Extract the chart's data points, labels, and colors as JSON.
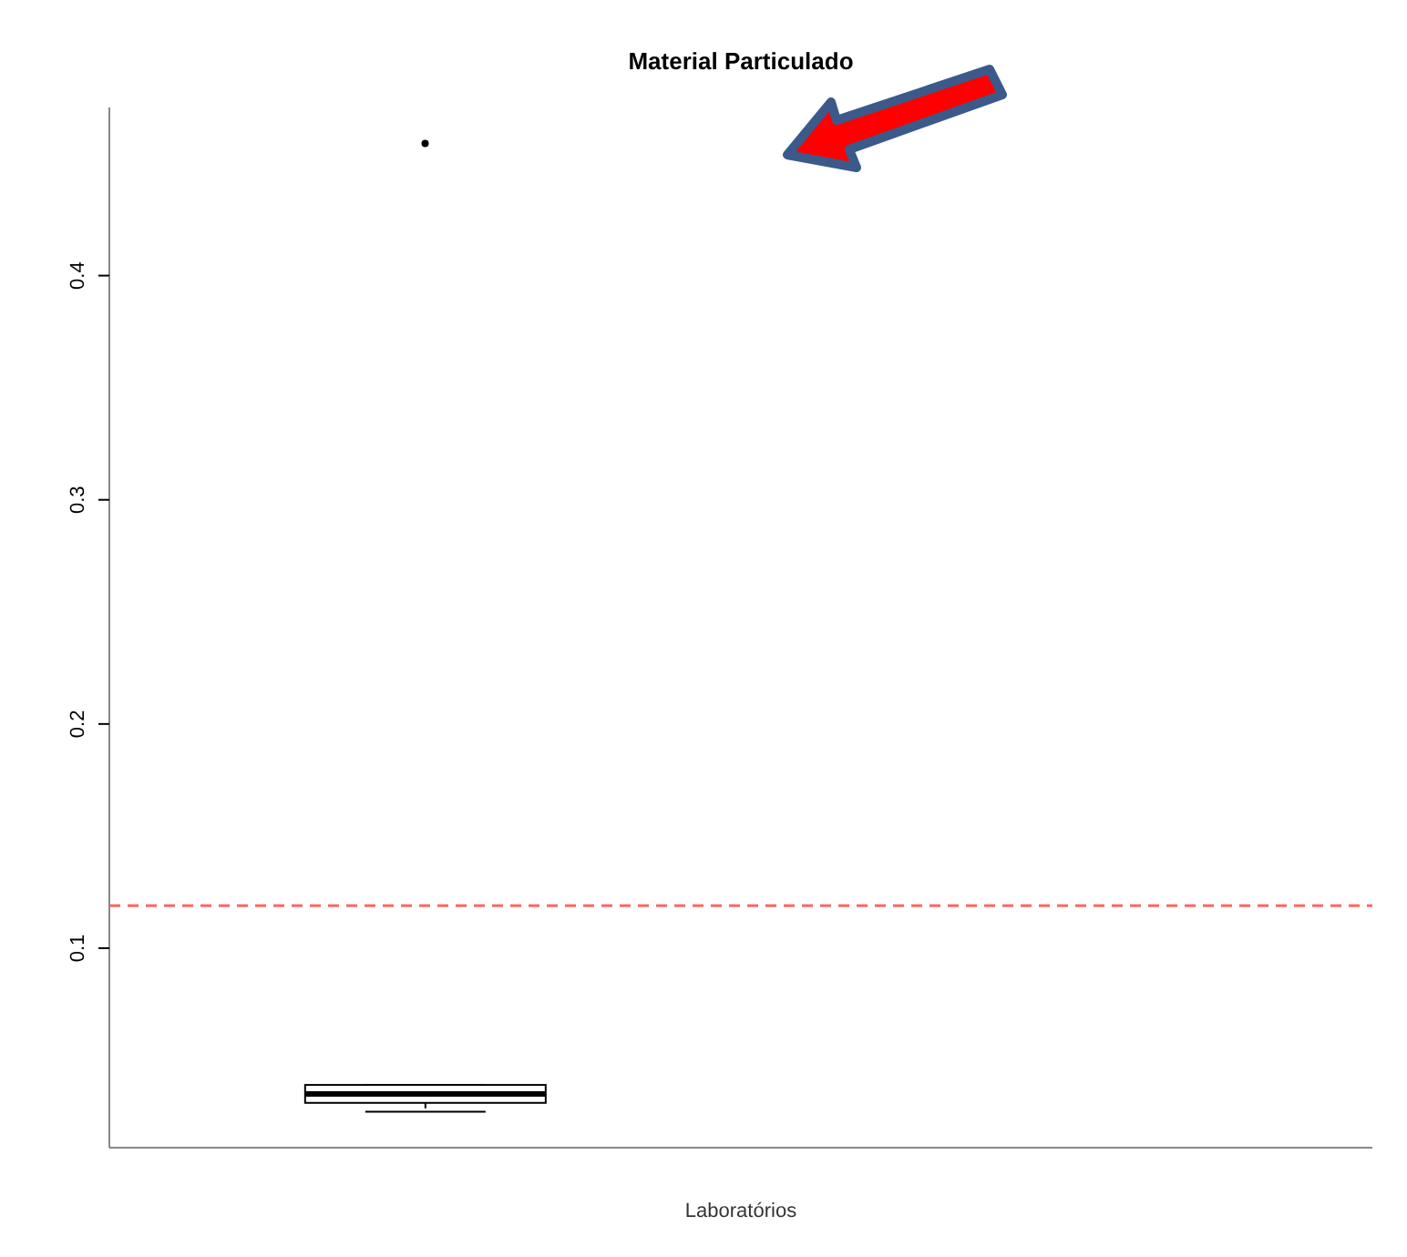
{
  "chart_data": {
    "type": "box",
    "title": "Material Particulado",
    "xlabel": "Laboratórios",
    "categories": [
      null
    ],
    "boxes": [
      {
        "low": 0.027,
        "q1": 0.031,
        "median": 0.035,
        "q3": 0.039,
        "high": 0.039,
        "outliers": [
          0.459
        ]
      }
    ],
    "color": "#000000",
    "ylim": [
      0.011,
      0.475
    ],
    "yticks": [
      0.1,
      0.2,
      0.3,
      0.4
    ],
    "ref_lines": [
      {
        "axis": "y",
        "value": 0.119,
        "color": "#ff6666",
        "line_style": "dashed"
      }
    ],
    "grid": false,
    "legend": false
  }
}
